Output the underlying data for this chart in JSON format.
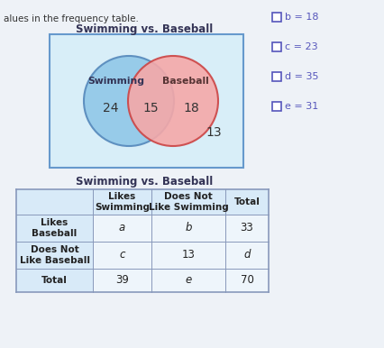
{
  "title_venn": "Swimming vs. Baseball",
  "title_table": "Swimming vs. Baseball",
  "venn_left_label": "Swimming",
  "venn_right_label": "Baseball",
  "venn_left_only": "24",
  "venn_intersect": "15",
  "venn_right_only": "18",
  "venn_outside_right": "13",
  "venn_circle_left_color": "#90c8e8",
  "venn_circle_right_color": "#f5a8a8",
  "venn_rect_color": "#d8eef8",
  "venn_rect_border": "#6699cc",
  "venn_right_border": "#cc4444",
  "venn_left_border": "#5588bb",
  "header_row": [
    "",
    "Likes\nSwimming",
    "Does Not\nLike Swimming",
    "Total"
  ],
  "rows": [
    [
      "Likes\nBaseball",
      "a",
      "b",
      "33"
    ],
    [
      "Does Not\nLike Baseball",
      "c",
      "13",
      "d"
    ],
    [
      "Total",
      "39",
      "e",
      "70"
    ]
  ],
  "answer_choices": [
    "b = 18",
    "c = 23",
    "d = 35",
    "e = 31"
  ],
  "bg_color": "#eef2f7",
  "text_color": "#222222",
  "choice_color": "#5555bb",
  "header_bg": "#d8eaf8",
  "table_bg": "#eef5fb",
  "grid_color": "#8899bb"
}
